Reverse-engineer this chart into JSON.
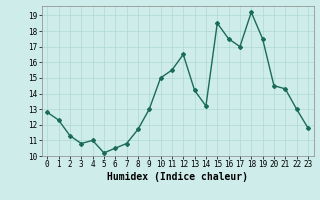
{
  "x": [
    0,
    1,
    2,
    3,
    4,
    5,
    6,
    7,
    8,
    9,
    10,
    11,
    12,
    13,
    14,
    15,
    16,
    17,
    18,
    19,
    20,
    21,
    22,
    23
  ],
  "y": [
    12.8,
    12.3,
    11.3,
    10.8,
    11.0,
    10.2,
    10.5,
    10.8,
    11.7,
    13.0,
    15.0,
    15.5,
    16.5,
    14.2,
    13.2,
    18.5,
    17.5,
    17.0,
    19.2,
    17.5,
    14.5,
    14.3,
    13.0,
    11.8
  ],
  "line_color": "#1a6b5a",
  "marker": "D",
  "marker_size": 2.0,
  "bg_color": "#ceecea",
  "grid_color": "#aed8d4",
  "xlabel": "Humidex (Indice chaleur)",
  "ylim": [
    10,
    19.6
  ],
  "xlim": [
    -0.5,
    23.5
  ],
  "yticks": [
    10,
    11,
    12,
    13,
    14,
    15,
    16,
    17,
    18,
    19
  ],
  "xticks": [
    0,
    1,
    2,
    3,
    4,
    5,
    6,
    7,
    8,
    9,
    10,
    11,
    12,
    13,
    14,
    15,
    16,
    17,
    18,
    19,
    20,
    21,
    22,
    23
  ],
  "tick_fontsize": 5.5,
  "xlabel_fontsize": 7.0,
  "line_width": 1.0
}
